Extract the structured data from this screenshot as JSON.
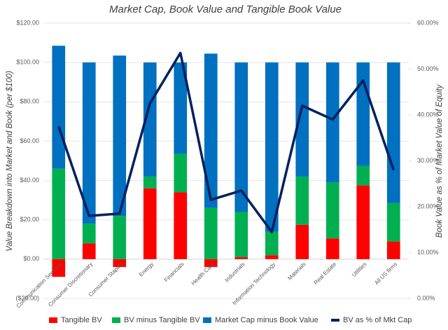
{
  "chart_data": {
    "type": "bar",
    "title": "Market Cap, Book Value and Tangible Book Value",
    "y_label": "Value Breakdown into Market and Book (per $100)",
    "y2_label": "Book Value as % of Market Value of Equity",
    "categories": [
      "Communication Services",
      "Consumer Discretionary",
      "Consumer Staples",
      "Energy",
      "Financials",
      "Health Care",
      "Industrials",
      "Information Technology",
      "Materials",
      "Real Estate",
      "Utilities",
      "All US firms"
    ],
    "series": [
      {
        "name": "Tangible BV",
        "color": "#ff0000",
        "values": [
          -9,
          8,
          -4,
          36,
          34,
          -4,
          1,
          2,
          17.5,
          10.5,
          37.5,
          9
        ]
      },
      {
        "name": "BV minus Tangible BV",
        "color": "#00b050",
        "values": [
          46,
          10,
          22,
          6,
          19.5,
          26,
          23,
          12,
          24.5,
          28.5,
          10,
          19.5
        ]
      },
      {
        "name": "Market Cap minus Book Value",
        "color": "#0070c0",
        "values": [
          62.5,
          82,
          81.5,
          58,
          46.5,
          78.5,
          76,
          86,
          58,
          61,
          52.5,
          71.5
        ]
      },
      {
        "name": "BV as % of Mkt Cap",
        "color": "#002060",
        "type": "line",
        "axis": "y2",
        "values": [
          37.5,
          18,
          18.5,
          42.5,
          53.5,
          21.5,
          23.5,
          14.5,
          42,
          39,
          47.5,
          28
        ]
      }
    ],
    "ylim": [
      -20,
      120
    ],
    "yticks": [
      {
        "value": -20,
        "label": "($20.00)"
      },
      {
        "value": 0,
        "label": "$0.00"
      },
      {
        "value": 20,
        "label": "$20.00"
      },
      {
        "value": 40,
        "label": "$40.00"
      },
      {
        "value": 60,
        "label": "$60.00"
      },
      {
        "value": 80,
        "label": "$80.00"
      },
      {
        "value": 100,
        "label": "$100.00"
      },
      {
        "value": 120,
        "label": "$120.00"
      }
    ],
    "y2lim": [
      0,
      60
    ],
    "y2ticks": [
      {
        "value": 0,
        "label": "0.00%"
      },
      {
        "value": 10,
        "label": "10.00%"
      },
      {
        "value": 20,
        "label": "20.00%"
      },
      {
        "value": 30,
        "label": "30.00%"
      },
      {
        "value": 40,
        "label": "40.00%"
      },
      {
        "value": 50,
        "label": "50.00%"
      },
      {
        "value": 60,
        "label": "60.00%"
      }
    ],
    "grid": true
  }
}
